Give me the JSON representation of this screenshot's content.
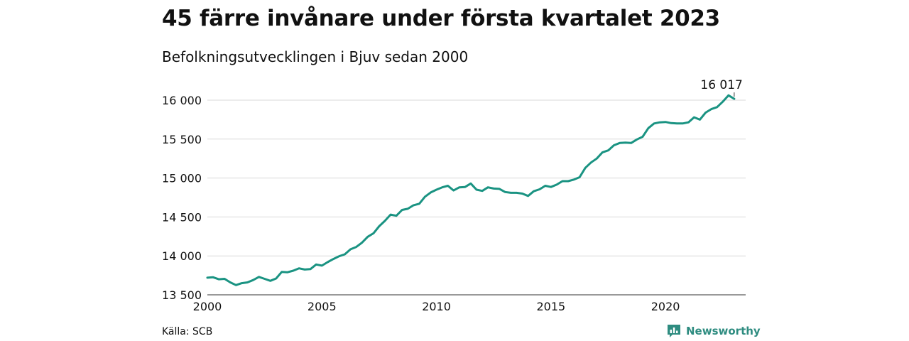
{
  "header": {
    "title": "45 färre invånare under första kvartalet 2023",
    "subtitle": "Befolkningsutvecklingen i Bjuv sedan 2000"
  },
  "footer": {
    "source": "Källa: SCB",
    "brand": "Newsworthy",
    "brand_icon": "bar-chart-icon"
  },
  "colors": {
    "line": "#1a9382",
    "grid": "#d9d9d9",
    "brand": "#2e8c80"
  },
  "chart_data": {
    "type": "line",
    "title": "45 färre invånare under första kvartalet 2023",
    "subtitle": "Befolkningsutvecklingen i Bjuv sedan 2000",
    "xlabel": "",
    "ylabel": "",
    "xlim": [
      2000,
      2023.5
    ],
    "ylim": [
      13500,
      16100
    ],
    "x_ticks": [
      2000,
      2005,
      2010,
      2015,
      2020
    ],
    "y_ticks": [
      13500,
      14000,
      14500,
      15000,
      15500,
      16000
    ],
    "y_tick_labels": [
      "13 500",
      "14 000",
      "14 500",
      "15 000",
      "15 500",
      "16 000"
    ],
    "grid": true,
    "legend": "none",
    "end_label": "16 017",
    "series": [
      {
        "x": [
          2000.0,
          2000.25,
          2000.5,
          2000.75,
          2001.0,
          2001.25,
          2001.5,
          2001.75,
          2002.0,
          2002.25,
          2002.5,
          2002.75,
          2003.0,
          2003.25,
          2003.5,
          2003.75,
          2004.0,
          2004.25,
          2004.5,
          2004.75,
          2005.0,
          2005.25,
          2005.5,
          2005.75,
          2006.0,
          2006.25,
          2006.5,
          2006.75,
          2007.0,
          2007.25,
          2007.5,
          2007.75,
          2008.0,
          2008.25,
          2008.5,
          2008.75,
          2009.0,
          2009.25,
          2009.5,
          2009.75,
          2010.0,
          2010.25,
          2010.5,
          2010.75,
          2011.0,
          2011.25,
          2011.5,
          2011.75,
          2012.0,
          2012.25,
          2012.5,
          2012.75,
          2013.0,
          2013.25,
          2013.5,
          2013.75,
          2014.0,
          2014.25,
          2014.5,
          2014.75,
          2015.0,
          2015.25,
          2015.5,
          2015.75,
          2016.0,
          2016.25,
          2016.5,
          2016.75,
          2017.0,
          2017.25,
          2017.5,
          2017.75,
          2018.0,
          2018.25,
          2018.5,
          2018.75,
          2019.0,
          2019.25,
          2019.5,
          2019.75,
          2020.0,
          2020.25,
          2020.5,
          2020.75,
          2021.0,
          2021.25,
          2021.5,
          2021.75,
          2022.0,
          2022.25,
          2022.5,
          2022.75,
          2023.0
        ],
        "values": [
          13720,
          13725,
          13700,
          13705,
          13660,
          13625,
          13650,
          13660,
          13690,
          13730,
          13705,
          13680,
          13710,
          13795,
          13790,
          13810,
          13840,
          13825,
          13830,
          13890,
          13875,
          13920,
          13960,
          13995,
          14020,
          14085,
          14115,
          14170,
          14245,
          14290,
          14380,
          14450,
          14530,
          14515,
          14590,
          14605,
          14650,
          14670,
          14760,
          14815,
          14850,
          14880,
          14900,
          14840,
          14880,
          14885,
          14930,
          14850,
          14835,
          14880,
          14865,
          14860,
          14820,
          14810,
          14810,
          14800,
          14770,
          14830,
          14855,
          14900,
          14885,
          14915,
          14960,
          14960,
          14980,
          15010,
          15130,
          15200,
          15250,
          15330,
          15355,
          15420,
          15450,
          15455,
          15450,
          15495,
          15530,
          15640,
          15700,
          15715,
          15720,
          15705,
          15700,
          15700,
          15715,
          15780,
          15750,
          15840,
          15885,
          15910,
          15980,
          16062,
          16017
        ]
      }
    ]
  }
}
